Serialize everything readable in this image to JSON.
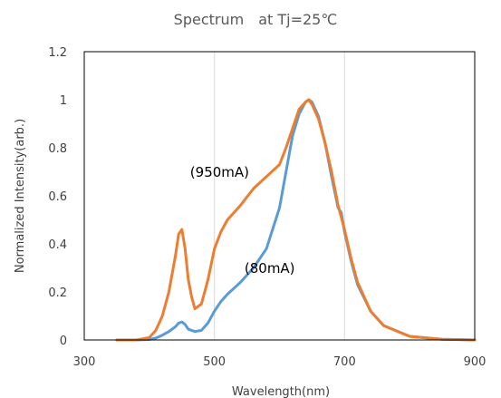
{
  "chart_data": {
    "type": "line",
    "title": "Spectrum　at Tj=25℃",
    "xlabel": "Wavelength(nm)",
    "ylabel": "Normalized Intensity(arb.)",
    "xlim": [
      300,
      900
    ],
    "ylim": [
      0,
      1.2
    ],
    "xticks": [
      300,
      500,
      700,
      900
    ],
    "yticks": [
      0,
      0.2,
      0.4,
      0.6,
      0.8,
      1,
      1.2
    ],
    "xtick_labels": [
      "300",
      "500",
      "700",
      "900"
    ],
    "ytick_labels": [
      "0",
      "0.2",
      "0.4",
      "0.6",
      "0.8",
      "1",
      "1.2"
    ],
    "grid": "vertical",
    "legend": "none",
    "series": [
      {
        "color": "#5b9bd5",
        "x": [
          350,
          380,
          400,
          410,
          420,
          430,
          440,
          445,
          450,
          455,
          460,
          470,
          480,
          490,
          500,
          510,
          520,
          540,
          560,
          580,
          600,
          610,
          620,
          630,
          640,
          645,
          650,
          660,
          670,
          680,
          690,
          695,
          700,
          710,
          720,
          740,
          760,
          800,
          850,
          900
        ],
        "y": [
          0.0,
          0.0,
          0.002,
          0.008,
          0.02,
          0.035,
          0.055,
          0.07,
          0.075,
          0.065,
          0.045,
          0.035,
          0.04,
          0.07,
          0.12,
          0.16,
          0.19,
          0.24,
          0.3,
          0.38,
          0.55,
          0.7,
          0.85,
          0.94,
          0.99,
          1.0,
          0.99,
          0.93,
          0.82,
          0.68,
          0.55,
          0.53,
          0.45,
          0.33,
          0.23,
          0.12,
          0.06,
          0.015,
          0.003,
          0.0
        ]
      },
      {
        "color": "#ed7d31",
        "x": [
          350,
          380,
          400,
          410,
          420,
          430,
          440,
          445,
          450,
          455,
          460,
          465,
          470,
          480,
          490,
          500,
          510,
          520,
          540,
          560,
          580,
          600,
          610,
          620,
          630,
          640,
          645,
          650,
          660,
          670,
          680,
          690,
          700,
          710,
          720,
          740,
          760,
          800,
          850,
          900
        ],
        "y": [
          0.0,
          0.0,
          0.01,
          0.04,
          0.1,
          0.2,
          0.35,
          0.44,
          0.46,
          0.38,
          0.25,
          0.18,
          0.13,
          0.15,
          0.25,
          0.38,
          0.45,
          0.5,
          0.56,
          0.63,
          0.68,
          0.73,
          0.8,
          0.88,
          0.96,
          0.99,
          1.0,
          0.98,
          0.92,
          0.82,
          0.7,
          0.56,
          0.46,
          0.34,
          0.24,
          0.12,
          0.06,
          0.015,
          0.003,
          0.0
        ]
      }
    ],
    "annotations": [
      {
        "text": "(950mA)",
        "x": 508,
        "y": 0.68
      },
      {
        "text": "(80mA)",
        "x": 585,
        "y": 0.28
      }
    ]
  }
}
